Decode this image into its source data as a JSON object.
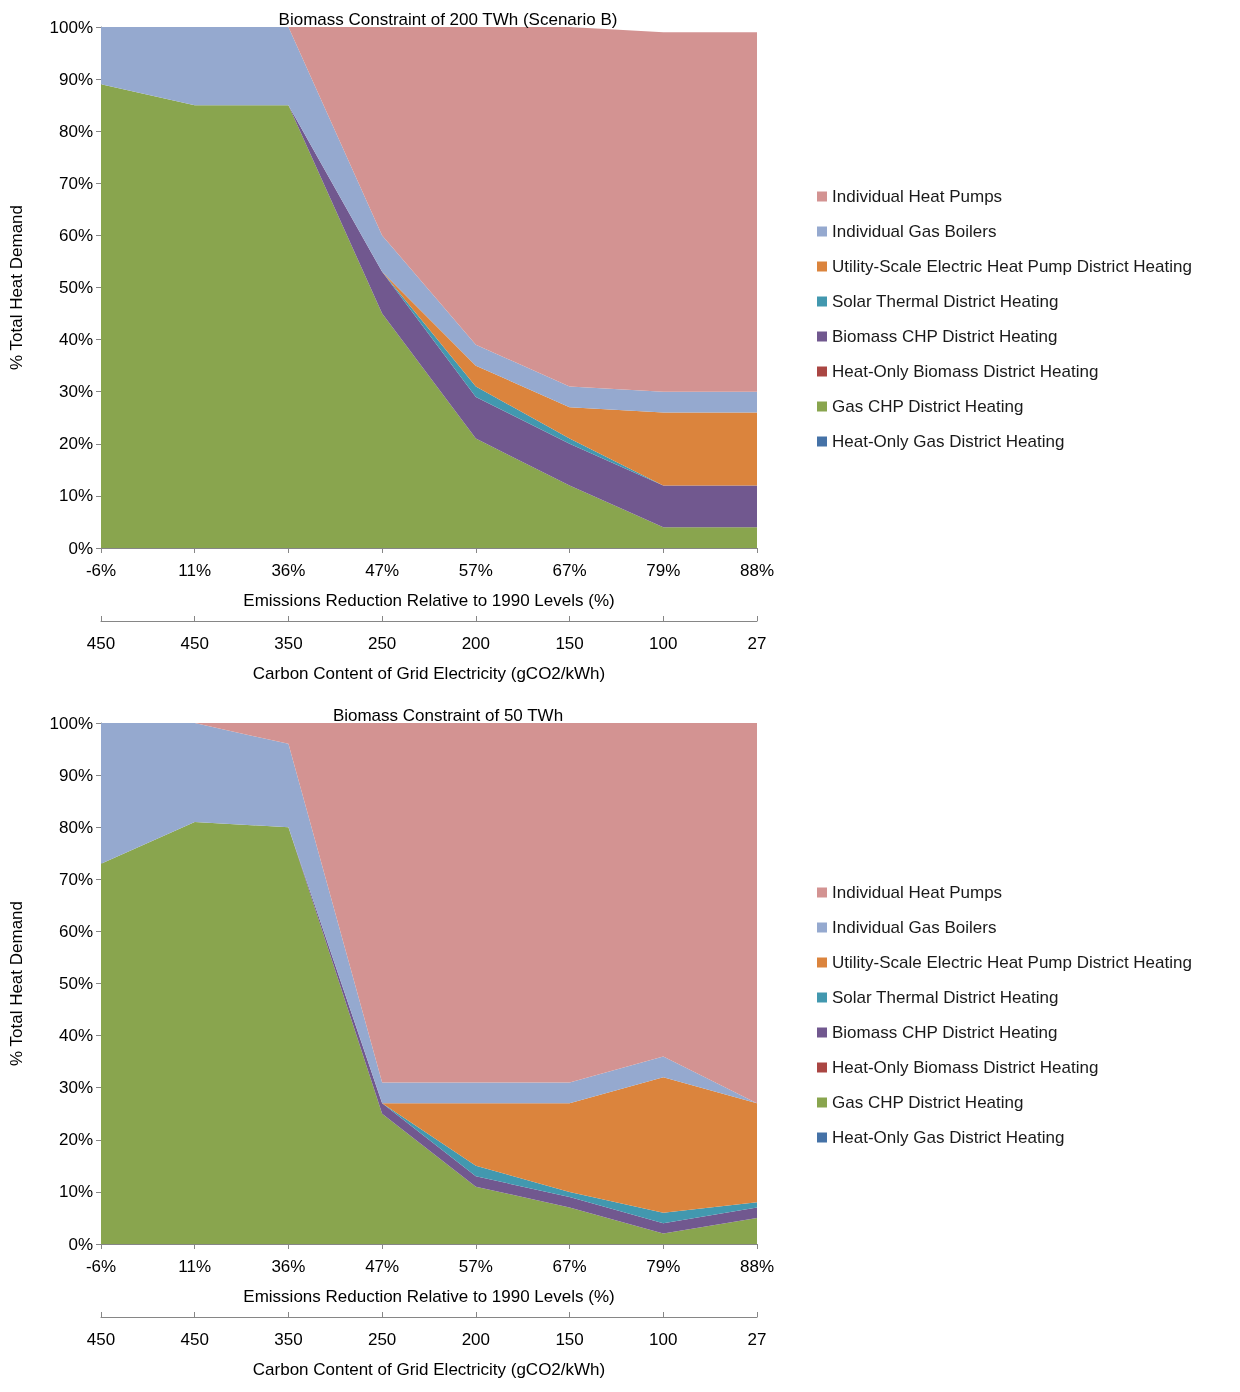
{
  "chart_data": [
    {
      "type": "area",
      "title": "Biomass Constraint of 200 TWh (Scenario B)",
      "xlabel": "Emissions Reduction Relative to 1990 Levels (%)",
      "ylabel": "% Total Heat Demand",
      "x2label": "Carbon Content of Grid Electricity (gCO2/kWh)",
      "categories": [
        "-6%",
        "11%",
        "36%",
        "47%",
        "57%",
        "67%",
        "79%",
        "88%"
      ],
      "annotations": [
        {
          "text": "450",
          "x": "-6%"
        },
        {
          "text": "450",
          "x": "11%"
        },
        {
          "text": "350",
          "x": "36%"
        },
        {
          "text": "250",
          "x": "47%"
        },
        {
          "text": "200",
          "x": "57%"
        },
        {
          "text": "150",
          "x": "67%"
        },
        {
          "text": "100",
          "x": "79%"
        },
        {
          "text": "27",
          "x": "88%"
        }
      ],
      "stacked": true,
      "legend": "right",
      "grid": false,
      "ylim": [
        0,
        100
      ],
      "yticks": [
        {
          "value": 0,
          "label": "0%"
        },
        {
          "value": 10,
          "label": "10%"
        },
        {
          "value": 20,
          "label": "20%"
        },
        {
          "value": 30,
          "label": "30%"
        },
        {
          "value": 40,
          "label": "40%"
        },
        {
          "value": 50,
          "label": "50%"
        },
        {
          "value": 60,
          "label": "60%"
        },
        {
          "value": 70,
          "label": "70%"
        },
        {
          "value": 80,
          "label": "80%"
        },
        {
          "value": 90,
          "label": "90%"
        },
        {
          "value": 100,
          "label": "100%"
        }
      ],
      "series": [
        {
          "name": "Heat-Only Gas District Heating",
          "color": "#4572a7",
          "values": [
            null,
            null,
            null,
            null,
            null,
            null,
            null,
            null
          ]
        },
        {
          "name": "Gas CHP District Heating",
          "color": "#89a54e",
          "values": [
            89,
            85,
            85,
            45,
            21,
            12,
            4,
            4
          ]
        },
        {
          "name": "Heat-Only Biomass District Heating",
          "color": "#aa4643",
          "values": [
            null,
            null,
            null,
            null,
            null,
            null,
            null,
            null
          ]
        },
        {
          "name": "Biomass CHP District Heating",
          "color": "#71588f",
          "values": [
            null,
            null,
            0,
            8,
            8,
            8,
            8,
            8
          ]
        },
        {
          "name": "Solar Thermal District Heating",
          "color": "#4298af",
          "values": [
            null,
            null,
            null,
            0,
            2,
            1,
            0,
            null
          ]
        },
        {
          "name": "Utility-Scale Electric Heat Pump District Heating",
          "color": "#db843d",
          "values": [
            null,
            null,
            null,
            0,
            4,
            6,
            14,
            14
          ]
        },
        {
          "name": "Individual Gas Boilers",
          "color": "#95a9cf",
          "values": [
            11,
            15,
            15,
            7,
            4,
            4,
            4,
            4
          ]
        },
        {
          "name": "Individual Heat Pumps",
          "color": "#d39392",
          "values": [
            null,
            null,
            0,
            40,
            61,
            69,
            69,
            69
          ]
        }
      ]
    },
    {
      "type": "area",
      "title": "Biomass Constraint of 50 TWh",
      "xlabel": "Emissions Reduction Relative to 1990 Levels (%)",
      "ylabel": "% Total Heat Demand",
      "x2label": "Carbon Content of Grid Electricity (gCO2/kWh)",
      "categories": [
        "-6%",
        "11%",
        "36%",
        "47%",
        "57%",
        "67%",
        "79%",
        "88%"
      ],
      "annotations": [
        {
          "text": "450",
          "x": "-6%"
        },
        {
          "text": "450",
          "x": "11%"
        },
        {
          "text": "350",
          "x": "36%"
        },
        {
          "text": "250",
          "x": "47%"
        },
        {
          "text": "200",
          "x": "57%"
        },
        {
          "text": "150",
          "x": "67%"
        },
        {
          "text": "100",
          "x": "79%"
        },
        {
          "text": "27",
          "x": "88%"
        }
      ],
      "stacked": true,
      "legend": "right",
      "grid": false,
      "ylim": [
        0,
        100
      ],
      "yticks": [
        {
          "value": 0,
          "label": "0%"
        },
        {
          "value": 10,
          "label": "10%"
        },
        {
          "value": 20,
          "label": "20%"
        },
        {
          "value": 30,
          "label": "30%"
        },
        {
          "value": 40,
          "label": "40%"
        },
        {
          "value": 50,
          "label": "50%"
        },
        {
          "value": 60,
          "label": "60%"
        },
        {
          "value": 70,
          "label": "70%"
        },
        {
          "value": 80,
          "label": "80%"
        },
        {
          "value": 90,
          "label": "90%"
        },
        {
          "value": 100,
          "label": "100%"
        }
      ],
      "series": [
        {
          "name": "Heat-Only Gas District Heating",
          "color": "#4572a7",
          "values": [
            null,
            null,
            null,
            null,
            null,
            null,
            null,
            null
          ]
        },
        {
          "name": "Gas CHP District Heating",
          "color": "#89a54e",
          "values": [
            73,
            81,
            80,
            25,
            11,
            7,
            2,
            5
          ]
        },
        {
          "name": "Heat-Only Biomass District Heating",
          "color": "#aa4643",
          "values": [
            null,
            null,
            null,
            null,
            null,
            null,
            null,
            null
          ]
        },
        {
          "name": "Biomass CHP District Heating",
          "color": "#71588f",
          "values": [
            null,
            null,
            0,
            2,
            2,
            2,
            2,
            2
          ]
        },
        {
          "name": "Solar Thermal District Heating",
          "color": "#4298af",
          "values": [
            null,
            null,
            null,
            0,
            2,
            1,
            2,
            1
          ]
        },
        {
          "name": "Utility-Scale Electric Heat Pump District Heating",
          "color": "#db843d",
          "values": [
            null,
            null,
            null,
            0,
            12,
            17,
            26,
            19
          ]
        },
        {
          "name": "Individual Gas Boilers",
          "color": "#95a9cf",
          "values": [
            27,
            19,
            16,
            4,
            4,
            4,
            4,
            0
          ]
        },
        {
          "name": "Individual Heat Pumps",
          "color": "#d39392",
          "values": [
            null,
            0,
            4,
            69,
            69,
            69,
            64,
            73
          ]
        }
      ]
    }
  ]
}
